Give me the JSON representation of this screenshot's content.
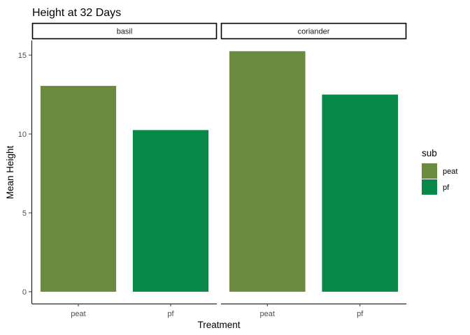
{
  "chart_data": {
    "type": "bar",
    "title": "Height at 32 Days",
    "xlabel": "Treatment",
    "ylabel": "Mean Height",
    "facets": [
      {
        "label": "basil",
        "bars": [
          {
            "category": "peat",
            "value": 13.05
          },
          {
            "category": "pf",
            "value": 10.25
          }
        ]
      },
      {
        "label": "coriander",
        "bars": [
          {
            "category": "peat",
            "value": 15.25
          },
          {
            "category": "pf",
            "value": 12.5
          }
        ]
      }
    ],
    "categories": [
      "peat",
      "pf"
    ],
    "ylim": [
      0,
      16
    ],
    "yticks": [
      0,
      5,
      10,
      15
    ],
    "legend": {
      "title": "sub",
      "placement": "right",
      "items": [
        {
          "label": "peat",
          "color": "#6b8a3f"
        },
        {
          "label": "pf",
          "color": "#078748"
        }
      ]
    },
    "grid": false
  }
}
